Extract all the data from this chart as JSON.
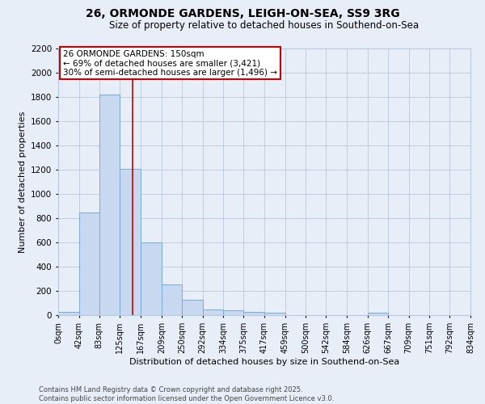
{
  "title1": "26, ORMONDE GARDENS, LEIGH-ON-SEA, SS9 3RG",
  "title2": "Size of property relative to detached houses in Southend-on-Sea",
  "xlabel": "Distribution of detached houses by size in Southend-on-Sea",
  "ylabel": "Number of detached properties",
  "bar_color": "#c8d8f0",
  "bar_edge_color": "#7aaad4",
  "vline_color": "#cc0000",
  "vline_x": 150,
  "bin_edges": [
    0,
    42,
    83,
    125,
    167,
    209,
    250,
    292,
    334,
    375,
    417,
    459,
    500,
    542,
    584,
    626,
    667,
    709,
    751,
    792,
    834
  ],
  "bar_heights": [
    25,
    848,
    1820,
    1210,
    600,
    255,
    125,
    50,
    38,
    30,
    22,
    0,
    0,
    0,
    0,
    22,
    0,
    0,
    0,
    0
  ],
  "tick_labels": [
    "0sqm",
    "42sqm",
    "83sqm",
    "125sqm",
    "167sqm",
    "209sqm",
    "250sqm",
    "292sqm",
    "334sqm",
    "375sqm",
    "417sqm",
    "459sqm",
    "500sqm",
    "542sqm",
    "584sqm",
    "626sqm",
    "667sqm",
    "709sqm",
    "751sqm",
    "792sqm",
    "834sqm"
  ],
  "ylim": [
    0,
    2200
  ],
  "yticks": [
    0,
    200,
    400,
    600,
    800,
    1000,
    1200,
    1400,
    1600,
    1800,
    2000,
    2200
  ],
  "annotation_text": "26 ORMONDE GARDENS: 150sqm\n← 69% of detached houses are smaller (3,421)\n30% of semi-detached houses are larger (1,496) →",
  "annotation_box_color": "white",
  "annotation_box_edge_color": "#cc0000",
  "footer_text": "Contains HM Land Registry data © Crown copyright and database right 2025.\nContains public sector information licensed under the Open Government Licence v3.0.",
  "bg_color": "#e8eef8",
  "grid_color": "#b8c8e0",
  "title1_fontsize": 10,
  "title2_fontsize": 8.5,
  "xlabel_fontsize": 8,
  "ylabel_fontsize": 8,
  "tick_fontsize": 7,
  "ytick_fontsize": 7.5,
  "annot_fontsize": 7.5,
  "footer_fontsize": 6
}
